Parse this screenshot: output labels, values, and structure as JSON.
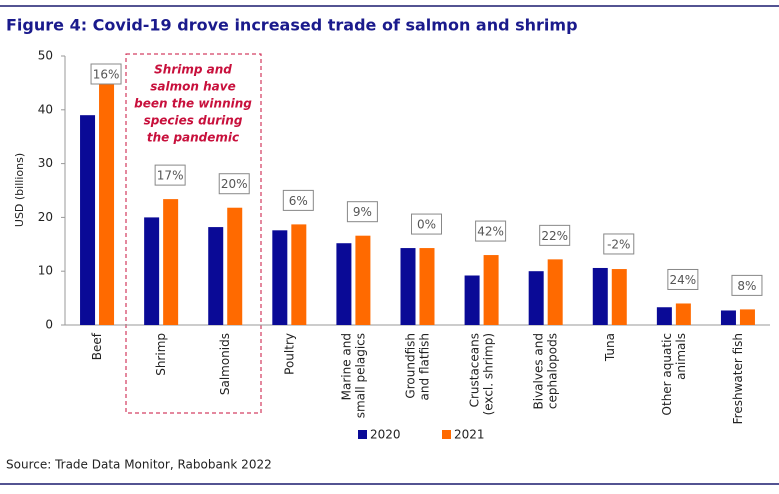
{
  "chart_data": {
    "type": "bar",
    "title": "Figure 4: Covid-19 drove increased trade of salmon and shrimp",
    "ylabel": "USD (billions)",
    "source": "Source: Trade Data Monitor, Rabobank 2022",
    "annotation": [
      "Shrimp and",
      "salmon have",
      "been the winning",
      "species during",
      "the pandemic"
    ],
    "categories": [
      [
        "Beef"
      ],
      [
        "Shrimp"
      ],
      [
        "Salmonids"
      ],
      [
        "Poultry"
      ],
      [
        "Marine and",
        "small pelagics"
      ],
      [
        "Groundfish",
        "and flatfish"
      ],
      [
        "Crustaceans",
        "(excl. shrimp)"
      ],
      [
        "Bivalves and",
        "cephalopods"
      ],
      [
        "Tuna"
      ],
      [
        "Other aquatic",
        "animals"
      ],
      [
        "Freshwater fish"
      ]
    ],
    "series": [
      {
        "name": "2020",
        "color": "#0a0a96",
        "values": [
          39,
          20,
          18.2,
          17.6,
          15.2,
          14.3,
          9.2,
          10,
          10.6,
          3.3,
          2.7
        ]
      },
      {
        "name": "2021",
        "color": "#ff6a00",
        "values": [
          45,
          23.4,
          21.8,
          18.7,
          16.6,
          14.3,
          13,
          12.2,
          10.4,
          4,
          2.9
        ]
      }
    ],
    "growth_labels": [
      "16%",
      "17%",
      "20%",
      "6%",
      "9%",
      "0%",
      "42%",
      "22%",
      "-2%",
      "24%",
      "8%"
    ],
    "ylim": [
      0,
      50
    ],
    "yticks": [
      0,
      10,
      20,
      30,
      40,
      50
    ],
    "grid": false,
    "legend": "bottom"
  }
}
